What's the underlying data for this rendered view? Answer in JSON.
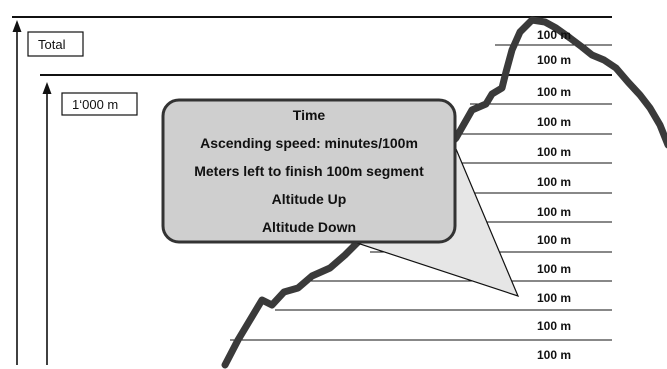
{
  "labels": {
    "total": "Total",
    "segment_total": "1‘000 m"
  },
  "segment_markers": [
    "100 m",
    "100 m",
    "100 m",
    "100 m",
    "100 m",
    "100 m",
    "100 m",
    "100 m",
    "100 m",
    "100 m",
    "100 m",
    "100 m"
  ],
  "callout": {
    "lines": [
      "Time",
      "Ascending speed: minutes/100m",
      "Meters left to finish 100m segment",
      "Altitude Up",
      "Altitude Down"
    ]
  },
  "colors": {
    "profile": "#3a3a3a",
    "callout_fill": "#cfcfcf",
    "callout_pointer": "#e6e6e6",
    "lines": "#111111"
  }
}
